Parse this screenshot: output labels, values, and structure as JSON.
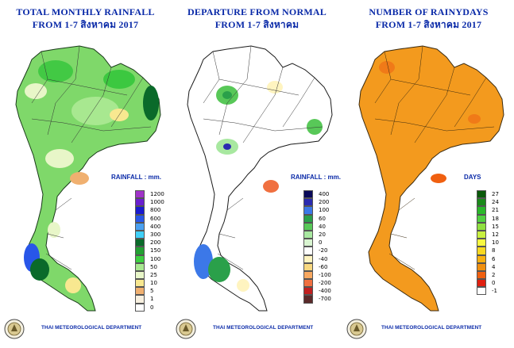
{
  "panels": [
    {
      "title": "TOTAL MONTHLY RAINFALL",
      "subtitle": "FROM 1-7 สิงหาคม 2017",
      "legend_title": "RAINFALL : mm.",
      "legend": [
        {
          "label": "1200",
          "color": "#a033c8"
        },
        {
          "label": "1000",
          "color": "#6a1fd0"
        },
        {
          "label": "800",
          "color": "#1a1ad0"
        },
        {
          "label": "600",
          "color": "#2856e8"
        },
        {
          "label": "400",
          "color": "#4aa0f0"
        },
        {
          "label": "300",
          "color": "#40d0f8"
        },
        {
          "label": "200",
          "color": "#0a6a2a"
        },
        {
          "label": "150",
          "color": "#22a032"
        },
        {
          "label": "100",
          "color": "#3cd040"
        },
        {
          "label": "50",
          "color": "#a8e890"
        },
        {
          "label": "25",
          "color": "#e8f6c8"
        },
        {
          "label": "10",
          "color": "#f8e890"
        },
        {
          "label": "5",
          "color": "#f0b070"
        },
        {
          "label": "1",
          "color": "#f8f0e0"
        },
        {
          "label": "0",
          "color": "#ffffff"
        }
      ]
    },
    {
      "title": "DEPARTURE FROM NORMAL",
      "subtitle": "FROM 1-7 สิงหาคม",
      "legend_title": "RAINFALL : mm.",
      "legend": [
        {
          "label": "400",
          "color": "#0a0a5a"
        },
        {
          "label": "200",
          "color": "#2a2ab0"
        },
        {
          "label": "100",
          "color": "#3c78e8"
        },
        {
          "label": "60",
          "color": "#2aa04a"
        },
        {
          "label": "40",
          "color": "#58c858"
        },
        {
          "label": "20",
          "color": "#a8e8a0"
        },
        {
          "label": "0",
          "color": "#d8f4d0"
        },
        {
          "label": "-20",
          "color": "#ffffff"
        },
        {
          "label": "-40",
          "color": "#fff4c0"
        },
        {
          "label": "-60",
          "color": "#f8d880"
        },
        {
          "label": "-100",
          "color": "#f8a860"
        },
        {
          "label": "-200",
          "color": "#f07040"
        },
        {
          "label": "-400",
          "color": "#c02020"
        },
        {
          "label": "-700",
          "color": "#5a2a2a"
        }
      ]
    },
    {
      "title": "NUMBER OF RAINYDAYS",
      "subtitle": "FROM 1-7 สิงหาคม 2017",
      "legend_title": "DAYS",
      "legend": [
        {
          "label": "27",
          "color": "#0a5a0a"
        },
        {
          "label": "24",
          "color": "#1a8a1a"
        },
        {
          "label": "21",
          "color": "#2ab82a"
        },
        {
          "label": "18",
          "color": "#50d040"
        },
        {
          "label": "15",
          "color": "#90e040"
        },
        {
          "label": "12",
          "color": "#c8f040"
        },
        {
          "label": "10",
          "color": "#f8f840"
        },
        {
          "label": "8",
          "color": "#f8d820"
        },
        {
          "label": "6",
          "color": "#f8b010"
        },
        {
          "label": "4",
          "color": "#f09010"
        },
        {
          "label": "2",
          "color": "#f06010"
        },
        {
          "label": "0",
          "color": "#e02010"
        },
        {
          "label": "-1",
          "color": "#ffffff"
        }
      ]
    }
  ],
  "department": "THAI METEOROLOGICAL DEPARTMENT",
  "map_colors": {
    "rainfall_base": "#7fd86a",
    "departure_base": "#ffffff",
    "rainydays_base": "#f39a1e"
  }
}
